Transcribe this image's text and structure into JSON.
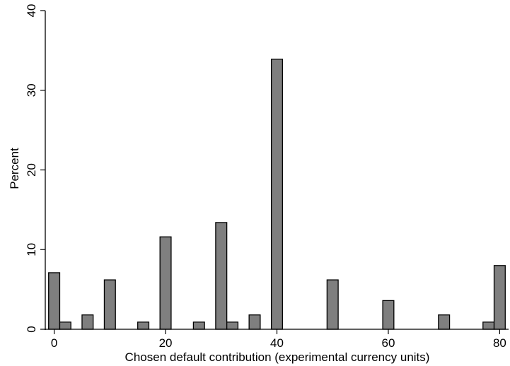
{
  "chart_data": {
    "type": "bar",
    "xlabel": "Chosen default contribution (experimental currency units)",
    "ylabel": "Percent",
    "xlim": [
      -1.6,
      81.6
    ],
    "ylim": [
      0,
      40
    ],
    "bin_width": 2,
    "x_ticks": [
      0,
      20,
      40,
      60,
      80
    ],
    "y_ticks": [
      0,
      10,
      20,
      30,
      40
    ],
    "grid": false,
    "bar_color": "#7f7f7f",
    "bar_edge_color": "#000000",
    "bars": [
      {
        "x": 0,
        "value": 7.1
      },
      {
        "x": 2,
        "value": 0.9
      },
      {
        "x": 6,
        "value": 1.8
      },
      {
        "x": 10,
        "value": 6.2
      },
      {
        "x": 16,
        "value": 0.9
      },
      {
        "x": 20,
        "value": 11.6
      },
      {
        "x": 26,
        "value": 0.9
      },
      {
        "x": 30,
        "value": 13.4
      },
      {
        "x": 32,
        "value": 0.9
      },
      {
        "x": 36,
        "value": 1.8
      },
      {
        "x": 40,
        "value": 33.9
      },
      {
        "x": 50,
        "value": 6.2
      },
      {
        "x": 60,
        "value": 3.6
      },
      {
        "x": 70,
        "value": 1.8
      },
      {
        "x": 78,
        "value": 0.9
      },
      {
        "x": 80,
        "value": 8.0
      }
    ]
  }
}
